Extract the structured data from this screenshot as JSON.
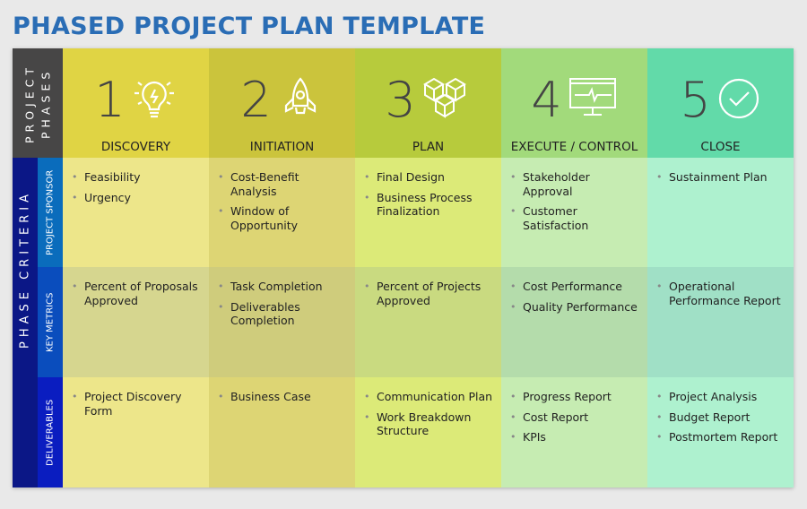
{
  "title": "PHASED PROJECT PLAN TEMPLATE",
  "side": {
    "project_phases_1": "PROJECT",
    "project_phases_2": "PHASES",
    "phase_criteria": "PHASE CRITERIA",
    "rows": [
      "PROJECT SPONSOR",
      "KEY METRICS",
      "DELIVERABLES"
    ]
  },
  "colors": {
    "title": "#2a6db5",
    "header": [
      "#e0d444",
      "#cbc43c",
      "#b7cb3c",
      "#a2da7b",
      "#62daa9"
    ],
    "row_light": [
      "#ede68a",
      "#ddd574",
      "#dcea78",
      "#c6ecb2",
      "#aef1cf"
    ],
    "row_dark": [
      "#d6d68f",
      "#cfcc7c",
      "#c9da80",
      "#b4dcab",
      "#a0e0c6"
    ]
  },
  "phases": [
    {
      "number": "1",
      "name": "DISCOVERY",
      "icon": "lightbulb-icon",
      "sponsor": [
        "Feasibility",
        "Urgency"
      ],
      "metrics": [
        "Percent of Proposals Approved"
      ],
      "deliverables": [
        "Project Discovery Form"
      ]
    },
    {
      "number": "2",
      "name": "INITIATION",
      "icon": "rocket-icon",
      "sponsor": [
        "Cost-Benefit Analysis",
        "Window of Opportunity"
      ],
      "metrics": [
        "Task Completion",
        "Deliverables Completion"
      ],
      "deliverables": [
        "Business Case"
      ]
    },
    {
      "number": "3",
      "name": "PLAN",
      "icon": "cubes-icon",
      "sponsor": [
        "Final Design",
        "Business Process Finalization"
      ],
      "metrics": [
        "Percent of Projects Approved"
      ],
      "deliverables": [
        "Communication Plan",
        "Work Breakdown Structure"
      ]
    },
    {
      "number": "4",
      "name": "EXECUTE / CONTROL",
      "icon": "monitor-pulse-icon",
      "sponsor": [
        "Stakeholder Approval",
        "Customer Satisfaction"
      ],
      "metrics": [
        "Cost Performance",
        "Quality Performance"
      ],
      "deliverables": [
        "Progress Report",
        "Cost Report",
        "KPIs"
      ]
    },
    {
      "number": "5",
      "name": "CLOSE",
      "icon": "check-circle-icon",
      "sponsor": [
        "Sustainment Plan"
      ],
      "metrics": [
        "Operational Performance Report"
      ],
      "deliverables": [
        "Project Analysis",
        "Budget Report",
        "Postmortem Report"
      ]
    }
  ]
}
